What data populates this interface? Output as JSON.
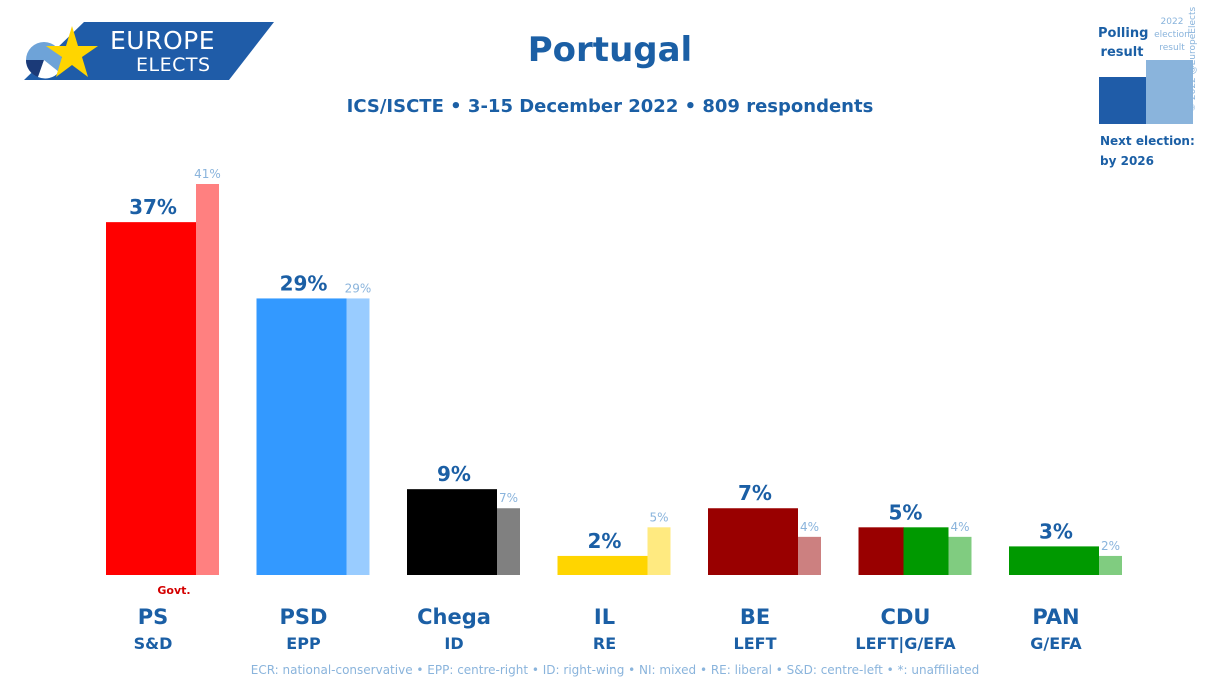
{
  "logo": {
    "line1": "EUROPE",
    "line2": "ELECTS"
  },
  "header": {
    "title": "Portugal",
    "subtitle": "ICS/ISCTE • 3-15 December 2022 • 809 respondents"
  },
  "legend": {
    "polling_label_line1": "Polling",
    "polling_label_line2": "result",
    "election_label_line1": "2022",
    "election_label_line2": "election",
    "election_label_line3": "result",
    "next_line1": "Next election:",
    "next_line2": "by 2026",
    "copyright": "© 2022 @EuropeElects"
  },
  "footnote": "ECR: national-conservative • EPP: centre-right • ID: right-wing • NI: mixed • RE: liberal • S&D: centre-left • *: unaffiliated",
  "colors": {
    "brand_blue": "#1b5fa5",
    "light_label": "#8ab4dc",
    "govt_red": "#d40000"
  },
  "chart_data": {
    "type": "bar",
    "title": "Portugal",
    "subtitle": "ICS/ISCTE • 3-15 December 2022 • 809 respondents",
    "ylim": [
      0,
      41
    ],
    "series": [
      {
        "name": "Polling result",
        "values": [
          37,
          29,
          9,
          2,
          7,
          5,
          3
        ]
      },
      {
        "name": "2022 election result",
        "values": [
          41,
          29,
          7,
          5,
          4,
          4,
          2
        ]
      }
    ],
    "parties": [
      {
        "name": "PS",
        "group": "S&D",
        "poll": 37,
        "poll_label": "37%",
        "election": 41,
        "election_label": "41%",
        "govt": "Govt.",
        "poll_color": [
          "#ff0000"
        ],
        "election_color": "#ff8080"
      },
      {
        "name": "PSD",
        "group": "EPP",
        "poll": 29,
        "poll_label": "29%",
        "election": 29,
        "election_label": "29%",
        "poll_color": [
          "#3399ff"
        ],
        "election_color": "#99ccff"
      },
      {
        "name": "Chega",
        "group": "ID",
        "poll": 9,
        "poll_label": "9%",
        "election": 7,
        "election_label": "7%",
        "poll_color": [
          "#000000"
        ],
        "election_color": "#808080"
      },
      {
        "name": "IL",
        "group": "RE",
        "poll": 2,
        "poll_label": "2%",
        "election": 5,
        "election_label": "5%",
        "poll_color": [
          "#ffd500"
        ],
        "election_color": "#ffea80"
      },
      {
        "name": "BE",
        "group": "LEFT",
        "poll": 7,
        "poll_label": "7%",
        "election": 4,
        "election_label": "4%",
        "poll_color": [
          "#990000"
        ],
        "election_color": "#cc8080"
      },
      {
        "name": "CDU",
        "group": "LEFT|G/EFA",
        "poll": 5,
        "poll_label": "5%",
        "election": 4,
        "election_label": "4%",
        "poll_color": [
          "#990000",
          "#009900"
        ],
        "election_color": "#80cc80"
      },
      {
        "name": "PAN",
        "group": "G/EFA",
        "poll": 3,
        "poll_label": "3%",
        "election": 2,
        "election_label": "2%",
        "poll_color": [
          "#009900"
        ],
        "election_color": "#80cc80"
      }
    ]
  }
}
